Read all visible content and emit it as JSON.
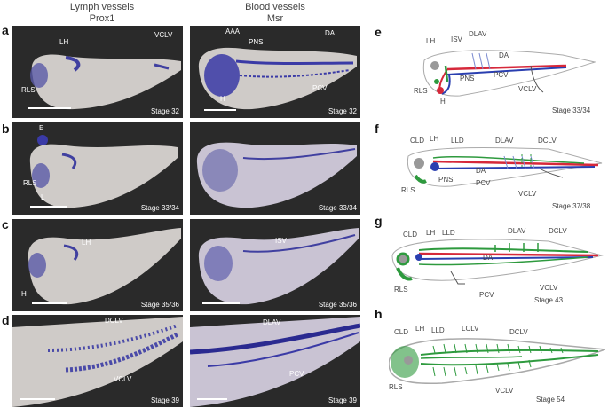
{
  "columns": {
    "lymph": {
      "title": "Lymph vessels",
      "marker": "Prox1"
    },
    "blood": {
      "title": "Blood vessels",
      "marker": "Msr"
    }
  },
  "rows": [
    {
      "letter": "a",
      "left": {
        "stage": "Stage 32",
        "labels": [
          "LH",
          "VCLV",
          "RLS"
        ]
      },
      "right": {
        "stage": "Stage 32",
        "labels": [
          "AAA",
          "PNS",
          "DA",
          "PCV",
          "H"
        ]
      }
    },
    {
      "letter": "b",
      "left": {
        "stage": "Stage 33/34",
        "labels": [
          "E",
          "RLS",
          "L"
        ]
      },
      "right": {
        "stage": "Stage 33/34",
        "labels": []
      }
    },
    {
      "letter": "c",
      "left": {
        "stage": "Stage 35/36",
        "labels": [
          "LH",
          "H"
        ]
      },
      "right": {
        "stage": "Stage 35/36",
        "labels": [
          "ISV"
        ]
      }
    },
    {
      "letter": "d",
      "left": {
        "stage": "Stage 39",
        "labels": [
          "DCLV",
          "VCLV"
        ]
      },
      "right": {
        "stage": "Stage 39",
        "labels": [
          "DLAV",
          "PCV"
        ]
      }
    }
  ],
  "diagrams": [
    {
      "letter": "e",
      "stage": "Stage 33/34",
      "labels": [
        "LH",
        "ISV",
        "DLAV",
        "DA",
        "RLS",
        "PNS",
        "PCV",
        "H",
        "VCLV"
      ]
    },
    {
      "letter": "f",
      "stage": "Stage 37/38",
      "labels": [
        "CLD",
        "LH",
        "LLD",
        "DLAV",
        "DCLV",
        "DA",
        "RLS",
        "PNS",
        "PCV",
        "VCLV"
      ]
    },
    {
      "letter": "g",
      "stage": "Stage 43",
      "labels": [
        "CLD",
        "LH",
        "LLD",
        "DLAV",
        "DCLV",
        "DA",
        "RLS",
        "PCV",
        "VCLV"
      ]
    },
    {
      "letter": "h",
      "stage": "Stage 54",
      "labels": [
        "CLD",
        "LH",
        "LLD",
        "LCLV",
        "DCLV",
        "RLS",
        "VCLV"
      ]
    }
  ],
  "colors": {
    "lymph": "#2e9a3e",
    "artery": "#d6283a",
    "vein": "#2a3fb0",
    "stain": "#3a3aa6",
    "embryo": "#d8d4d0"
  }
}
